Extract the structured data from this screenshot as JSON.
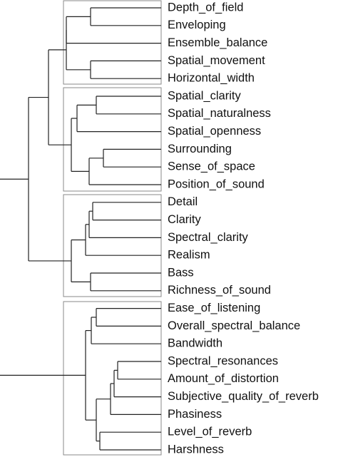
{
  "leaves": [
    "Depth_of_field",
    "Enveloping",
    "Ensemble_balance",
    "Spatial_movement",
    "Horizontal_width",
    "Spatial_clarity",
    "Spatial_naturalness",
    "Spatial_openness",
    "Surrounding",
    "Sense_of_space",
    "Position_of_sound",
    "Detail",
    "Clarity",
    "Spectral_clarity",
    "Realism",
    "Bass",
    "Richness_of_sound",
    "Ease_of_listening",
    "Overall_spectral_balance",
    "Bandwidth",
    "Spectral_resonances",
    "Amount_of_distortion",
    "Subjective_quality_of_reverb",
    "Phasiness",
    "Level_of_reverb",
    "Harshness"
  ]
}
